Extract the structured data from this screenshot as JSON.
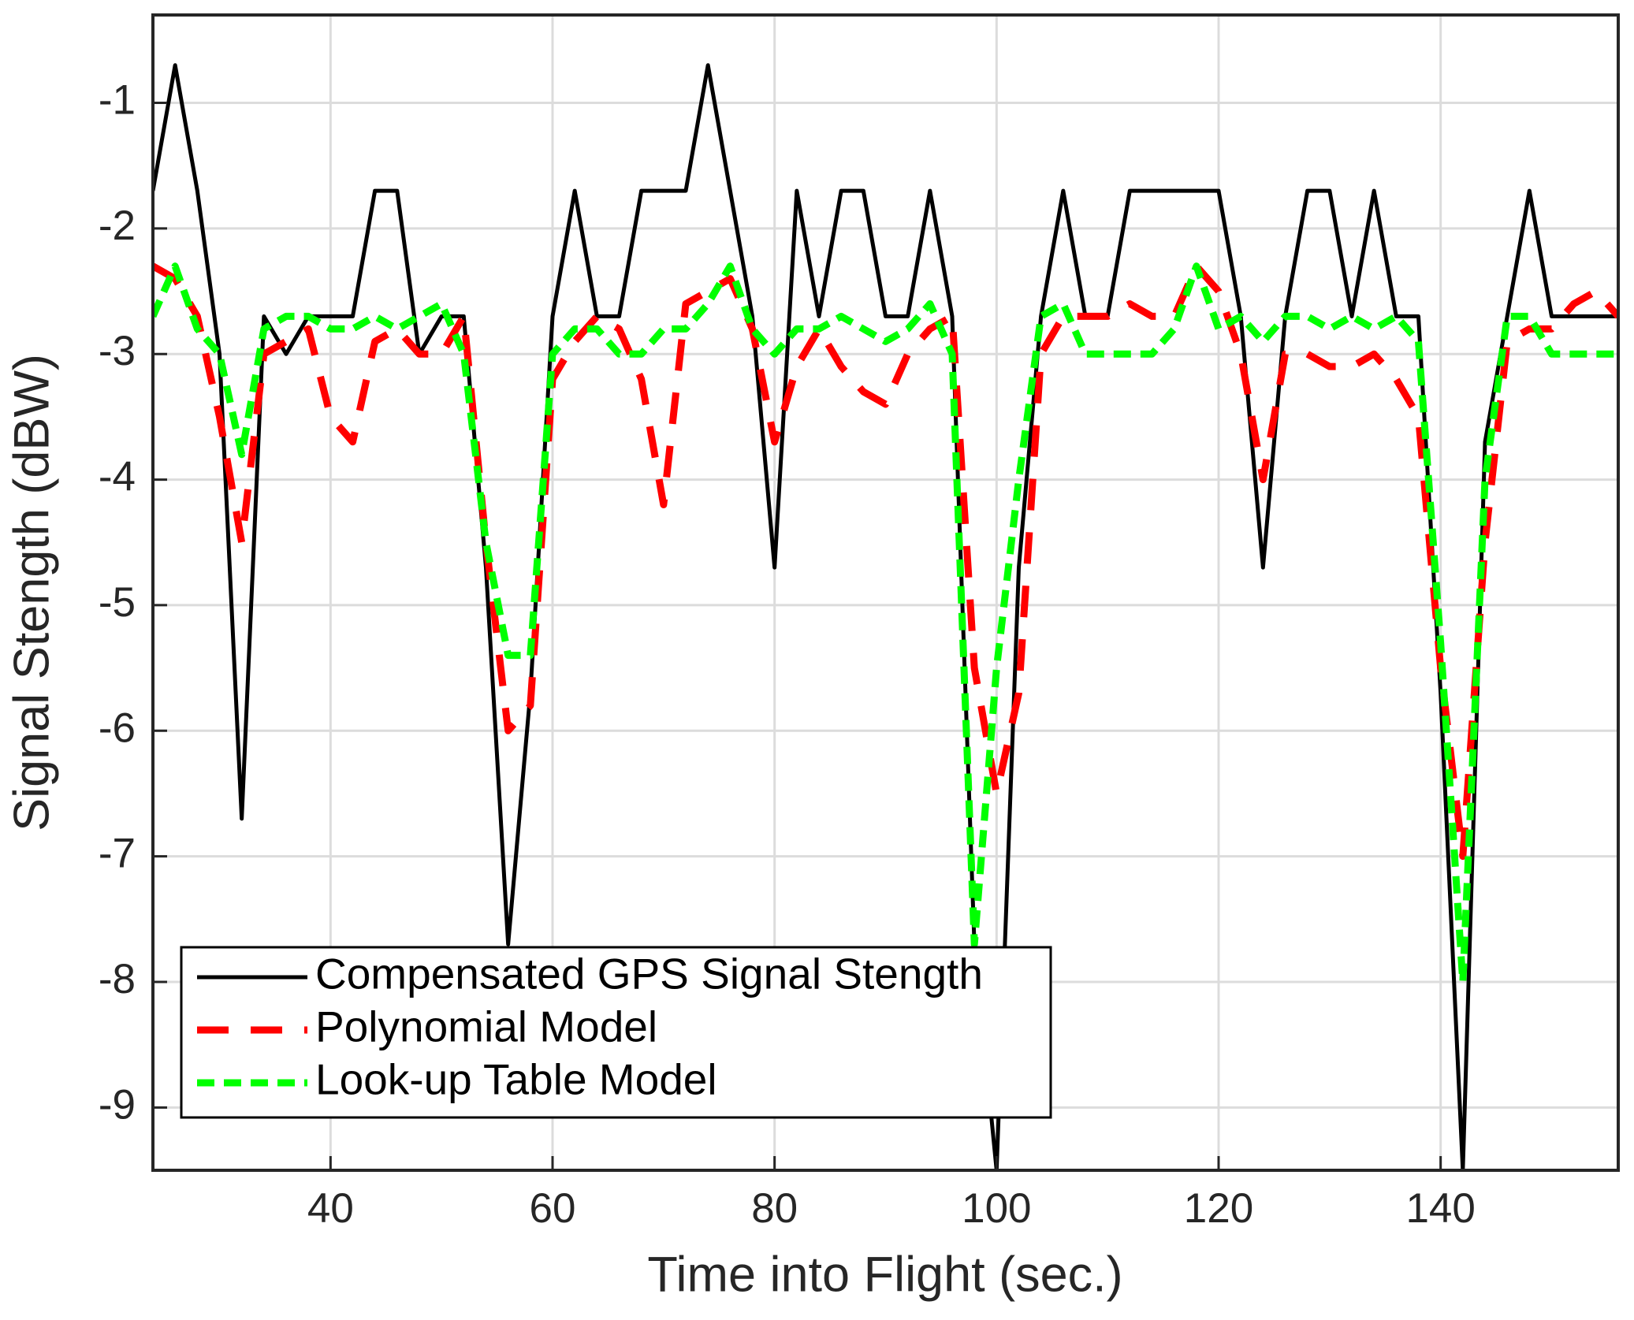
{
  "chart_data": {
    "type": "line",
    "xlabel": "Time into Flight (sec.)",
    "ylabel": "Signal Stength (dBW)",
    "xlim": [
      24,
      156
    ],
    "ylim": [
      -9.5,
      -0.3
    ],
    "xticks": [
      40,
      60,
      80,
      100,
      120,
      140
    ],
    "yticks": [
      -9,
      -8,
      -7,
      -6,
      -5,
      -4,
      -3,
      -2,
      -1
    ],
    "grid": true,
    "legend": "lower left",
    "x": [
      24,
      26,
      28,
      30,
      32,
      34,
      36,
      38,
      40,
      42,
      44,
      46,
      48,
      50,
      52,
      54,
      56,
      58,
      60,
      62,
      64,
      66,
      68,
      70,
      72,
      74,
      76,
      78,
      80,
      82,
      84,
      86,
      88,
      90,
      92,
      94,
      96,
      98,
      100,
      102,
      104,
      106,
      108,
      110,
      112,
      114,
      116,
      118,
      120,
      122,
      124,
      126,
      128,
      130,
      132,
      134,
      136,
      138,
      140,
      142,
      144,
      146,
      148,
      150,
      152,
      154,
      156
    ],
    "series": [
      {
        "name": "Compensated GPS Signal Stength",
        "color": "#000000",
        "dash": "solid",
        "values": [
          -1.7,
          -0.7,
          -1.7,
          -3.0,
          -6.7,
          -2.7,
          -3.0,
          -2.7,
          -2.7,
          -2.7,
          -1.7,
          -1.7,
          -3.0,
          -2.7,
          -2.7,
          -4.7,
          -7.7,
          -5.7,
          -2.7,
          -1.7,
          -2.7,
          -2.7,
          -1.7,
          -1.7,
          -1.7,
          -0.7,
          -1.7,
          -2.7,
          -4.7,
          -1.7,
          -2.7,
          -1.7,
          -1.7,
          -2.7,
          -2.7,
          -1.7,
          -2.7,
          -7.7,
          -9.5,
          -4.7,
          -2.7,
          -1.7,
          -2.7,
          -2.7,
          -1.7,
          -1.7,
          -1.7,
          -1.7,
          -1.7,
          -2.7,
          -4.7,
          -2.7,
          -1.7,
          -1.7,
          -2.7,
          -1.7,
          -2.7,
          -2.7,
          -5.7,
          -9.5,
          -3.7,
          -2.7,
          -1.7,
          -2.7,
          -2.7,
          -2.7,
          -2.7
        ]
      },
      {
        "name": "Polynomial Model",
        "color": "#ff0000",
        "dash": "dashed",
        "values": [
          -2.3,
          -2.4,
          -2.7,
          -3.5,
          -4.5,
          -3.0,
          -2.9,
          -2.8,
          -3.5,
          -3.7,
          -2.9,
          -2.8,
          -3.0,
          -3.0,
          -2.7,
          -4.5,
          -6.0,
          -5.8,
          -3.2,
          -2.9,
          -2.7,
          -2.8,
          -3.2,
          -4.2,
          -2.6,
          -2.5,
          -2.4,
          -2.8,
          -3.7,
          -3.1,
          -2.8,
          -3.1,
          -3.3,
          -3.4,
          -3.0,
          -2.8,
          -2.7,
          -5.5,
          -6.5,
          -5.7,
          -3.0,
          -2.7,
          -2.7,
          -2.7,
          -2.6,
          -2.7,
          -2.7,
          -2.3,
          -2.5,
          -3.0,
          -4.0,
          -3.0,
          -3.0,
          -3.1,
          -3.1,
          -3.0,
          -3.2,
          -3.5,
          -5.5,
          -7.0,
          -4.5,
          -2.9,
          -2.8,
          -2.8,
          -2.6,
          -2.5,
          -2.7
        ]
      },
      {
        "name": "Look-up Table Model",
        "color": "#00ff00",
        "dash": "dotted",
        "values": [
          -2.7,
          -2.3,
          -2.8,
          -3.0,
          -3.8,
          -2.8,
          -2.7,
          -2.7,
          -2.8,
          -2.8,
          -2.7,
          -2.8,
          -2.7,
          -2.6,
          -3.0,
          -4.5,
          -5.4,
          -5.4,
          -3.0,
          -2.8,
          -2.8,
          -3.0,
          -3.0,
          -2.8,
          -2.8,
          -2.6,
          -2.3,
          -2.8,
          -3.0,
          -2.8,
          -2.8,
          -2.7,
          -2.8,
          -2.9,
          -2.8,
          -2.6,
          -3.0,
          -7.7,
          -5.5,
          -4.0,
          -2.7,
          -2.6,
          -3.0,
          -3.0,
          -3.0,
          -3.0,
          -2.8,
          -2.3,
          -2.8,
          -2.7,
          -2.9,
          -2.7,
          -2.7,
          -2.8,
          -2.7,
          -2.8,
          -2.7,
          -2.9,
          -5.3,
          -8.0,
          -4.0,
          -2.7,
          -2.7,
          -3.0,
          -3.0,
          -3.0,
          -3.0
        ]
      }
    ]
  }
}
